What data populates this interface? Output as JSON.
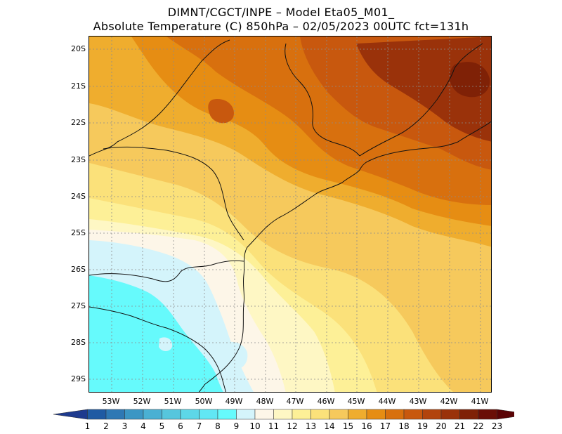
{
  "header": {
    "line1": "DIMNT/CGCT/INPE –  Model Eta05_M01_",
    "line2": "Absolute Temperature (C) 850hPa –  02/05/2023 00UTC fct=131h"
  },
  "map": {
    "lat_labels": [
      "20S",
      "21S",
      "22S",
      "23S",
      "24S",
      "25S",
      "26S",
      "27S",
      "28S",
      "29S"
    ],
    "lon_labels": [
      "53W",
      "52W",
      "51W",
      "50W",
      "49W",
      "48W",
      "47W",
      "46W",
      "45W",
      "44W",
      "43W",
      "42W",
      "41W"
    ]
  },
  "colorbar": {
    "labels": [
      "1",
      "2",
      "3",
      "4",
      "5",
      "6",
      "7",
      "8",
      "9",
      "10",
      "11",
      "12",
      "13",
      "14",
      "15",
      "16",
      "17",
      "18",
      "19",
      "20",
      "21",
      "22",
      "23"
    ],
    "colors": [
      "#1e3a8e",
      "#1f5aa3",
      "#2e78b4",
      "#3b96c4",
      "#4ab0d3",
      "#56c6dd",
      "#5dd7e8",
      "#61e7f4",
      "#66fafc",
      "#d4f4fb",
      "#fdf6e8",
      "#fef7c4",
      "#fdf097",
      "#fbe17a",
      "#f6c95c",
      "#efad2e",
      "#e68d13",
      "#d8700e",
      "#c8580e",
      "#b2440d",
      "#9a320a",
      "#7f2106",
      "#6a0e06",
      "#5a0305"
    ],
    "temperature_colors": {
      "t10": "#66fafc",
      "t11": "#d4f4fb",
      "t12": "#fdf6e8",
      "t13": "#fef7c4",
      "t14": "#fdf097",
      "t15": "#fbe17a",
      "t16": "#f6c95c",
      "t17": "#efad2e",
      "t18": "#e68d13",
      "t19": "#d8700e",
      "t20": "#c8580e",
      "t21": "#9a320a",
      "t22": "#7f2106"
    }
  }
}
